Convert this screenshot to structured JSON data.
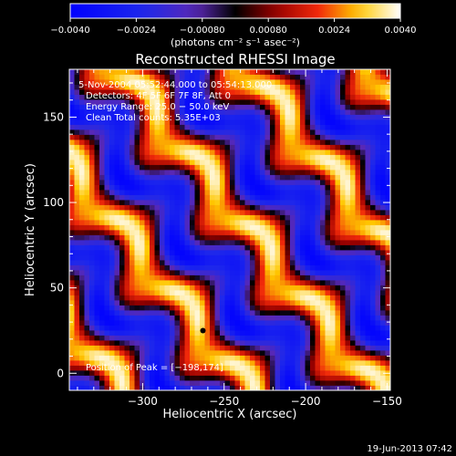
{
  "chart_data": {
    "type": "heatmap",
    "title": "Reconstructed RHESSI Image",
    "xlabel": "Heliocentric X (arcsec)",
    "ylabel": "Heliocentric Y (arcsec)",
    "xlim": [
      -345,
      -148
    ],
    "ylim": [
      -10,
      178
    ],
    "x_ticks": [
      -300,
      -250,
      -200,
      -150
    ],
    "y_ticks": [
      0,
      50,
      100,
      150
    ],
    "x_tick_labels": [
      "−300",
      "−250",
      "−200",
      "−150"
    ],
    "y_tick_labels": [
      "0",
      "50",
      "100",
      "150"
    ],
    "colorbar": {
      "min": -0.004,
      "max": 0.004,
      "ticks": [
        -0.004,
        -0.0024,
        -0.0008,
        0.0008,
        0.0024,
        0.004
      ],
      "tick_labels": [
        "−0.0040",
        "−0.0024",
        "−0.00080",
        "0.00080",
        "0.0024",
        "0.0040"
      ],
      "unit_label": "(photons cm⁻² s⁻¹ asec⁻²)",
      "colormap": "blue-black-red-yellow-white"
    },
    "annotations": [
      "5-Nov-2004 05:52:44.000 to 05:54:13.000",
      "Detectors: 4F 5F 6F 7F 8F, Att 0",
      "Energy Range: 25.0 − 50.0 keV",
      "Clean  Total counts: 5.35E+03"
    ],
    "peak_label": "Position of Peak = [−198,174]",
    "marker": {
      "x": -263,
      "y": 25
    },
    "bright_bands": [
      {
        "x": -318,
        "y": 142,
        "value": 0.004
      },
      {
        "x": -250,
        "y": 100,
        "value": 0.004
      },
      {
        "x": -185,
        "y": 62,
        "value": 0.0032
      },
      {
        "x": -170,
        "y": 8,
        "value": 0.003
      },
      {
        "x": -210,
        "y": 160,
        "value": 0.0028
      },
      {
        "x": -290,
        "y": 28,
        "value": 0.0022
      },
      {
        "x": -157,
        "y": 128,
        "value": 0.0022
      }
    ]
  },
  "footer": {
    "date": "19-Jun-2013 07:42"
  }
}
